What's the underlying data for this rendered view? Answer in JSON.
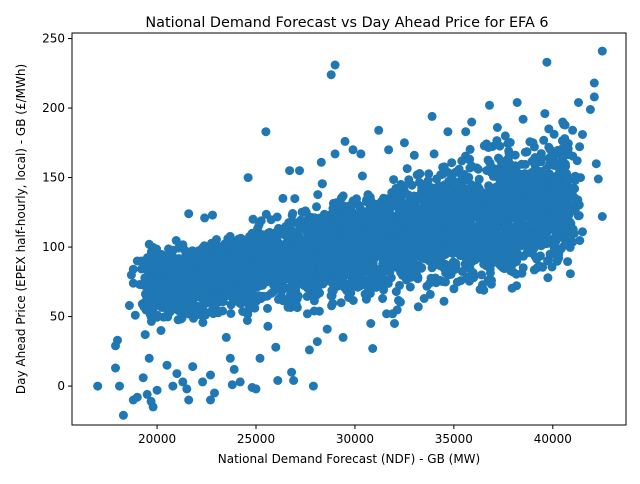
{
  "chart_data": {
    "type": "scatter",
    "title": "National Demand Forecast vs Day Ahead Price for EFA 6",
    "xlabel": "National Demand Forecast (NDF) - GB (MW)",
    "ylabel": "Day Ahead Price (EPEX half-hourly, local) - GB (£/MWh)",
    "xlim": [
      15700,
      43700
    ],
    "ylim": [
      -28,
      254
    ],
    "xticks": [
      20000,
      25000,
      30000,
      35000,
      40000
    ],
    "yticks": [
      0,
      50,
      100,
      150,
      200,
      250
    ],
    "xtick_labels": [
      "20000",
      "25000",
      "30000",
      "35000",
      "40000"
    ],
    "ytick_labels": [
      "0",
      "50",
      "100",
      "150",
      "200",
      "250"
    ],
    "grid": false,
    "legend": "none",
    "marker_color": "#1f77b4",
    "point_count_estimate": 4000,
    "trend": {
      "description": "positive linear relationship",
      "slope_per_MW": 0.0032,
      "intercept": 0,
      "reference_x": 20000,
      "reference_y": 75
    },
    "points": [
      [
        17000,
        0
      ],
      [
        18000,
        33
      ],
      [
        17900,
        29
      ],
      [
        17900,
        13
      ],
      [
        18100,
        0
      ],
      [
        18300,
        -21
      ],
      [
        18600,
        58
      ],
      [
        18700,
        80
      ],
      [
        18800,
        84
      ],
      [
        18800,
        74
      ],
      [
        19000,
        90
      ],
      [
        19200,
        90
      ],
      [
        18900,
        51
      ],
      [
        19300,
        6
      ],
      [
        19400,
        37
      ],
      [
        19500,
        -6
      ],
      [
        19700,
        -11
      ],
      [
        19800,
        -15
      ],
      [
        19000,
        -8
      ],
      [
        18800,
        -10
      ],
      [
        19600,
        20
      ],
      [
        19600,
        102
      ],
      [
        20000,
        -3
      ],
      [
        20200,
        40
      ],
      [
        20500,
        15
      ],
      [
        20800,
        0
      ],
      [
        21000,
        9
      ],
      [
        21300,
        3
      ],
      [
        21500,
        -2
      ],
      [
        21600,
        -10
      ],
      [
        21600,
        124
      ],
      [
        21800,
        14
      ],
      [
        22300,
        3
      ],
      [
        22700,
        -10
      ],
      [
        22900,
        -5
      ],
      [
        22700,
        8
      ],
      [
        22400,
        121
      ],
      [
        22800,
        123
      ],
      [
        23000,
        55
      ],
      [
        23500,
        35
      ],
      [
        23700,
        20
      ],
      [
        23900,
        12
      ],
      [
        23800,
        1
      ],
      [
        24200,
        3
      ],
      [
        24600,
        150
      ],
      [
        24800,
        -1
      ],
      [
        25000,
        -2
      ],
      [
        25200,
        20
      ],
      [
        25500,
        183
      ],
      [
        25600,
        43
      ],
      [
        26000,
        28
      ],
      [
        26100,
        4
      ],
      [
        26700,
        155
      ],
      [
        26800,
        10
      ],
      [
        26900,
        4
      ],
      [
        27200,
        155
      ],
      [
        27600,
        52
      ],
      [
        27700,
        26
      ],
      [
        27900,
        0
      ],
      [
        28300,
        161
      ],
      [
        28100,
        32
      ],
      [
        28600,
        41
      ],
      [
        28800,
        224
      ],
      [
        29000,
        231
      ],
      [
        29000,
        167
      ],
      [
        29300,
        60
      ],
      [
        29400,
        35
      ],
      [
        29500,
        176
      ],
      [
        29900,
        170
      ],
      [
        30300,
        167
      ],
      [
        30800,
        45
      ],
      [
        30900,
        27
      ],
      [
        31200,
        184
      ],
      [
        31400,
        63
      ],
      [
        31600,
        52
      ],
      [
        31700,
        170
      ],
      [
        32000,
        45
      ],
      [
        32500,
        175
      ],
      [
        33000,
        166
      ],
      [
        33200,
        57
      ],
      [
        33500,
        63
      ],
      [
        33900,
        194
      ],
      [
        34000,
        167
      ],
      [
        34300,
        76
      ],
      [
        34500,
        61
      ],
      [
        34700,
        183
      ],
      [
        35000,
        70
      ],
      [
        35400,
        162
      ],
      [
        35600,
        183
      ],
      [
        35900,
        190
      ],
      [
        36000,
        78
      ],
      [
        36400,
        80
      ],
      [
        36800,
        202
      ],
      [
        36900,
        76
      ],
      [
        37200,
        186
      ],
      [
        37600,
        180
      ],
      [
        38000,
        82
      ],
      [
        38200,
        204
      ],
      [
        38500,
        192
      ],
      [
        38600,
        128
      ],
      [
        39000,
        175
      ],
      [
        39200,
        85
      ],
      [
        39400,
        86
      ],
      [
        39600,
        196
      ],
      [
        39700,
        233
      ],
      [
        39800,
        185
      ],
      [
        39900,
        165
      ],
      [
        40200,
        110
      ],
      [
        40300,
        95
      ],
      [
        40500,
        190
      ],
      [
        40600,
        178
      ],
      [
        40900,
        108
      ],
      [
        41000,
        184
      ],
      [
        41100,
        142
      ],
      [
        41300,
        204
      ],
      [
        41400,
        150
      ],
      [
        41500,
        181
      ],
      [
        41500,
        111
      ],
      [
        41900,
        199
      ],
      [
        42100,
        218
      ],
      [
        42100,
        208
      ],
      [
        42200,
        160
      ],
      [
        42300,
        149
      ],
      [
        42500,
        241
      ],
      [
        42500,
        122
      ]
    ]
  }
}
